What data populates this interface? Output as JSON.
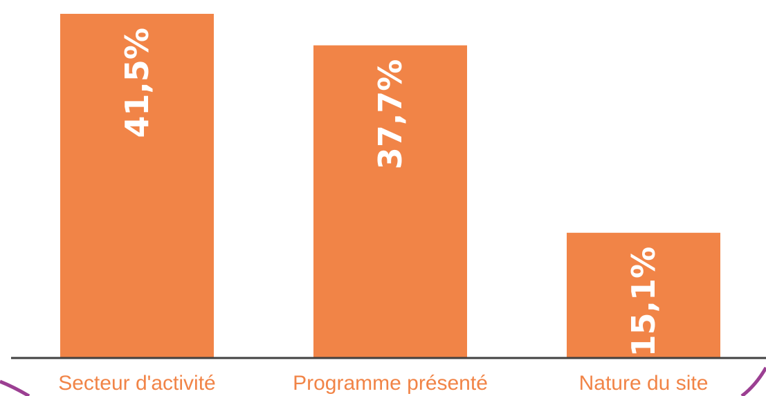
{
  "chart_data": {
    "type": "bar",
    "categories": [
      "Secteur d'activité",
      "Programme présenté",
      "Nature du site"
    ],
    "values": [
      41.5,
      37.7,
      15.1
    ],
    "value_labels": [
      "41,5%",
      "37,7%",
      "15,1%"
    ],
    "unit": "%",
    "ylim": [
      0,
      42.5
    ],
    "grid": false,
    "legend": "none",
    "value_label_orientation": "vertical",
    "colors": {
      "bar": "#F18447",
      "label_text": "#F18447",
      "value_text": "#FFFFFF",
      "axis": "#404040",
      "corner_accent": "#9B3F92"
    }
  }
}
